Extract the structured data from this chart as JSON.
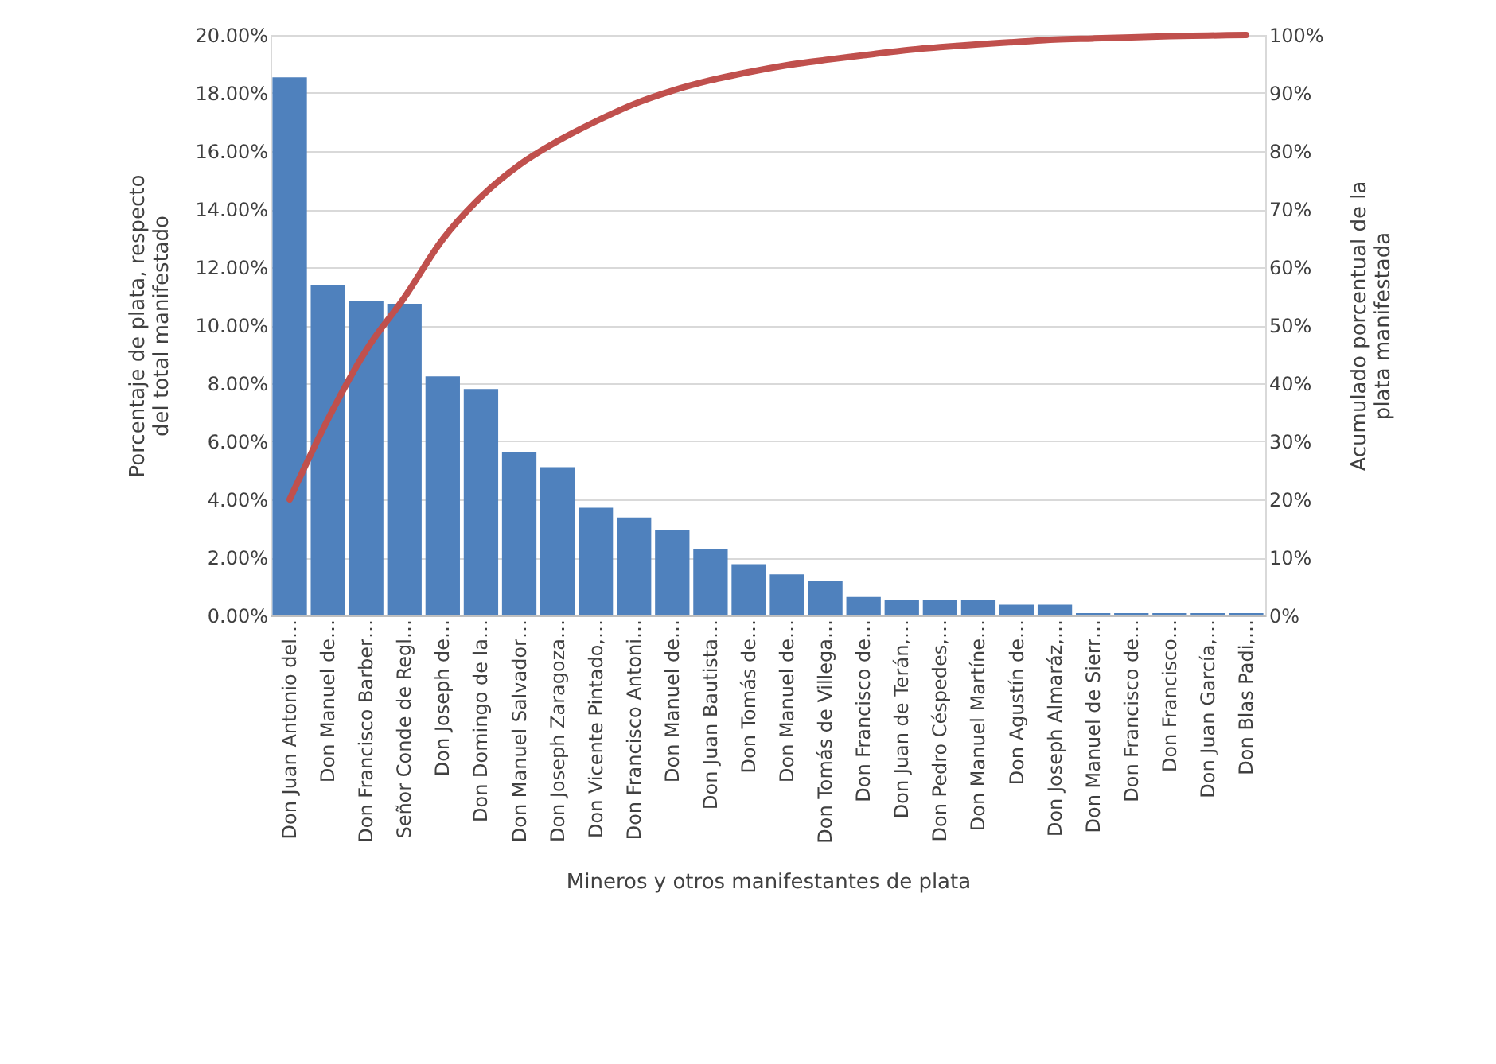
{
  "chart_data": {
    "type": "bar",
    "categories": [
      "Don Juan Antonio del…",
      "Don Manuel de…",
      "Don Francisco Barber…",
      "Señor Conde de Regl…",
      "Don Joseph de…",
      "Don Domingo de la…",
      "Don Manuel Salvador…",
      "Don Joseph Zaragoza…",
      "Don Vicente Pintado,…",
      "Don Francisco Antoni…",
      "Don Manuel de…",
      "Don Juan Bautista…",
      "Don Tomás de…",
      "Don Manuel de…",
      "Don Tomás de Villega…",
      "Don Francisco de…",
      "Don Juan de Terán,…",
      "Don Pedro Céspedes,…",
      "Don Manuel Martíne…",
      "Don Agustín de…",
      "Don Joseph Almaráz,…",
      "Don Manuel de Sierr…",
      "Don Francisco de…",
      "Don Francisco…",
      "Don Juan García,…",
      "Don Blas Padi,…"
    ],
    "series": [
      {
        "color": "#4f81bd",
        "values": [
          18.54,
          11.38,
          10.85,
          10.74,
          8.24,
          7.8,
          5.64,
          5.11,
          3.71,
          3.38,
          2.96,
          2.28,
          1.77,
          1.42,
          1.2,
          0.64,
          0.55,
          0.55,
          0.55,
          0.37,
          0.37,
          0.08,
          0.08,
          0.08,
          0.08,
          0.08
        ]
      },
      {
        "type": "line",
        "axis": "y2",
        "color": "#c0504d",
        "values": [
          20,
          33.8,
          45.7,
          54.8,
          64.8,
          72.1,
          77.6,
          81.7,
          85.1,
          88.1,
          90.4,
          92.2,
          93.6,
          94.8,
          95.7,
          96.5,
          97.3,
          97.9,
          98.4,
          98.8,
          99.2,
          99.4,
          99.6,
          99.8,
          99.9,
          100
        ]
      }
    ],
    "xlabel": "Mineros y otros manifestantes de plata",
    "ylabel": "Porcentaje de plata, respecto\ndel total manifestado",
    "y2label": "Acumulado porcentual de la\nplata manifestada",
    "ylim": [
      0,
      20
    ],
    "yticks": [
      {
        "value": 0,
        "label": "0.00%"
      },
      {
        "value": 2,
        "label": "2.00%"
      },
      {
        "value": 4,
        "label": "4.00%"
      },
      {
        "value": 6,
        "label": "6.00%"
      },
      {
        "value": 8,
        "label": "8.00%"
      },
      {
        "value": 10,
        "label": "10.00%"
      },
      {
        "value": 12,
        "label": "12.00%"
      },
      {
        "value": 14,
        "label": "14.00%"
      },
      {
        "value": 16,
        "label": "16.00%"
      },
      {
        "value": 18,
        "label": "18.00%"
      },
      {
        "value": 20,
        "label": "20.00%"
      }
    ],
    "y2lim": [
      0,
      100
    ],
    "y2ticks": [
      {
        "value": 0,
        "label": "0%"
      },
      {
        "value": 10,
        "label": "10%"
      },
      {
        "value": 20,
        "label": "20%"
      },
      {
        "value": 30,
        "label": "30%"
      },
      {
        "value": 40,
        "label": "40%"
      },
      {
        "value": 50,
        "label": "50%"
      },
      {
        "value": 60,
        "label": "60%"
      },
      {
        "value": 70,
        "label": "70%"
      },
      {
        "value": 80,
        "label": "80%"
      },
      {
        "value": 90,
        "label": "90%"
      },
      {
        "value": 100,
        "label": "100%"
      }
    ],
    "grid": "y"
  }
}
